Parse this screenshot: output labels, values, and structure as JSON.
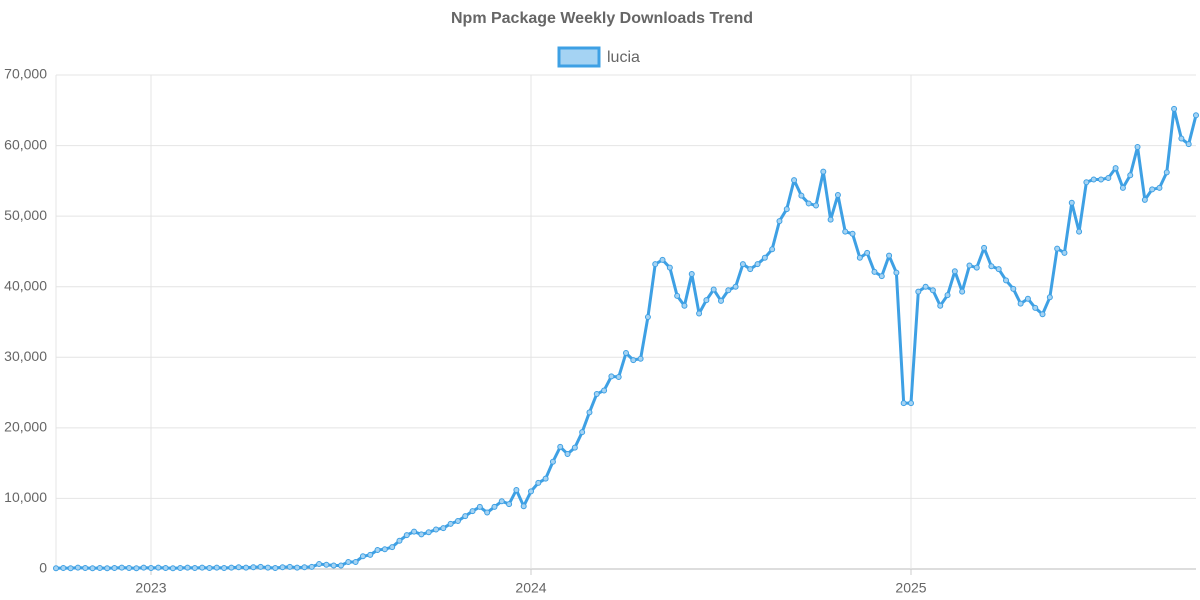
{
  "chart_data": {
    "type": "line",
    "title": "Npm Package Weekly Downloads Trend",
    "categories": [
      null,
      null,
      null,
      null,
      null,
      null,
      null,
      null,
      null,
      null,
      null,
      null,
      null,
      "2023",
      null,
      null,
      null,
      null,
      null,
      null,
      null,
      null,
      null,
      null,
      null,
      null,
      null,
      null,
      null,
      null,
      null,
      null,
      null,
      null,
      null,
      null,
      null,
      null,
      null,
      null,
      null,
      null,
      null,
      null,
      null,
      null,
      null,
      null,
      null,
      null,
      null,
      null,
      null,
      null,
      null,
      null,
      null,
      null,
      null,
      null,
      null,
      null,
      null,
      null,
      null,
      "2024",
      null,
      null,
      null,
      null,
      null,
      null,
      null,
      null,
      null,
      null,
      null,
      null,
      null,
      null,
      null,
      null,
      null,
      null,
      null,
      null,
      null,
      null,
      null,
      null,
      null,
      null,
      null,
      null,
      null,
      null,
      null,
      null,
      null,
      null,
      null,
      null,
      null,
      null,
      null,
      null,
      null,
      null,
      null,
      null,
      null,
      null,
      null,
      null,
      null,
      null,
      null,
      "2025",
      null,
      null,
      null,
      null,
      null,
      null,
      null,
      null,
      null,
      null,
      null,
      null,
      null,
      null,
      null,
      null,
      null,
      null,
      null,
      null,
      null,
      null,
      null,
      null,
      null,
      null,
      null,
      null,
      null,
      null,
      null,
      null,
      null,
      null,
      null,
      null,
      null,
      null,
      null
    ],
    "series": [
      {
        "name": "lucia",
        "color": "#3ea0e4",
        "fill": "#a5d3f3",
        "values": [
          100,
          150,
          100,
          200,
          150,
          100,
          150,
          100,
          150,
          200,
          150,
          100,
          200,
          150,
          200,
          150,
          100,
          150,
          200,
          150,
          200,
          150,
          200,
          150,
          200,
          250,
          200,
          250,
          300,
          200,
          150,
          250,
          300,
          200,
          250,
          300,
          700,
          600,
          500,
          500,
          1000,
          1000,
          1800,
          2000,
          2700,
          2800,
          3100,
          4000,
          4800,
          5300,
          4900,
          5200,
          5600,
          5800,
          6400,
          6800,
          7500,
          8200,
          8800,
          8000,
          8800,
          9600,
          9200,
          11200,
          8900,
          11000,
          12200,
          12800,
          15200,
          17300,
          16300,
          17200,
          19400,
          22200,
          24800,
          25300,
          27300,
          27200,
          30600,
          29600,
          29800,
          35700,
          43200,
          43800,
          42700,
          38700,
          37300,
          41800,
          36200,
          38100,
          39600,
          38000,
          39500,
          40000,
          43200,
          42500,
          43200,
          44100,
          45300,
          49300,
          51000,
          55100,
          52900,
          51800,
          51500,
          56300,
          49500,
          53000,
          47800,
          47500,
          44100,
          44800,
          42100,
          41500,
          44400,
          42000,
          23500,
          23500,
          39300,
          40000,
          39500,
          37300,
          38800,
          42200,
          39300,
          43000,
          42700,
          45500,
          42900,
          42500,
          40900,
          39700,
          37600,
          38300,
          37000,
          36100,
          38500,
          45400,
          44800,
          51900,
          47800,
          54800,
          55200,
          55200,
          55400,
          56800,
          54000,
          55800,
          59800,
          52300,
          53800,
          54000,
          56200,
          65200,
          61000,
          60200,
          64300
        ]
      }
    ],
    "ylim": [
      0,
      70000
    ],
    "yticks": [
      0,
      {
        "value": 10000,
        "label": "10,000"
      },
      {
        "value": 20000,
        "label": "20,000"
      },
      {
        "value": 30000,
        "label": "30,000"
      },
      {
        "value": 40000,
        "label": "40,000"
      },
      {
        "value": 50000,
        "label": "50,000"
      },
      {
        "value": 60000,
        "label": "60,000"
      },
      {
        "value": 70000,
        "label": "70,000"
      }
    ],
    "grid": true,
    "legend": "top"
  }
}
